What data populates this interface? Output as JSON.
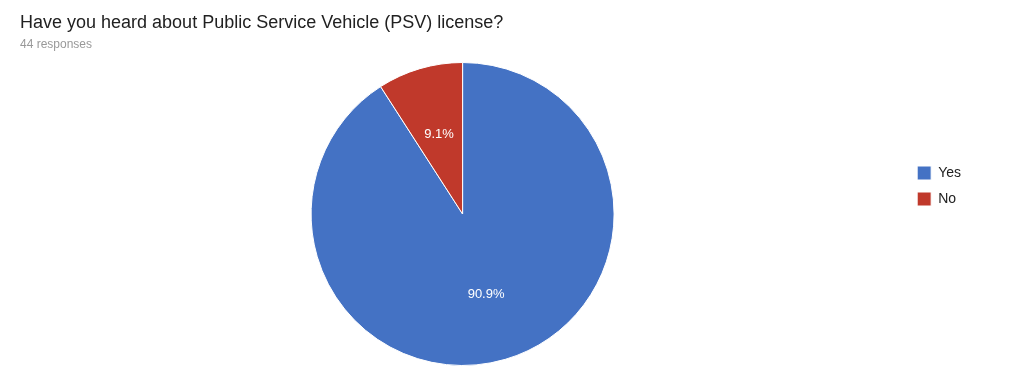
{
  "chart_data": {
    "type": "pie",
    "title": "Have you heard about Public Service Vehicle (PSV) license?",
    "subtitle": "44 responses",
    "categories": [
      "Yes",
      "No"
    ],
    "values": [
      90.9,
      9.1
    ],
    "colors": [
      "#4472C4",
      "#C0392B"
    ],
    "data_labels": true,
    "value_labels": [
      "90.9%",
      "9.1%"
    ],
    "legend": "right"
  }
}
